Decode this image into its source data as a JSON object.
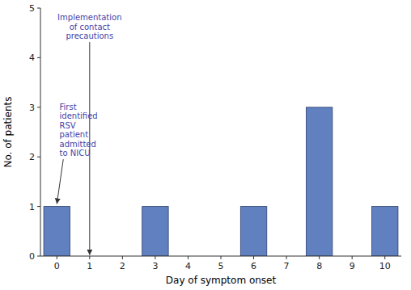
{
  "chart_data": {
    "type": "bar",
    "x": [
      0,
      1,
      2,
      3,
      4,
      5,
      6,
      7,
      8,
      9,
      10
    ],
    "values": [
      1,
      0,
      0,
      1,
      0,
      0,
      1,
      0,
      3,
      0,
      1
    ],
    "color": "#6080c0",
    "xlabel": "Day of symptom onset",
    "ylabel": "No. of patients",
    "xlim": [
      -0.5,
      10.5
    ],
    "xticks": [
      0,
      1,
      2,
      3,
      4,
      5,
      6,
      7,
      8,
      9,
      10
    ],
    "ylim": [
      0,
      5
    ],
    "yticks": [
      0,
      1,
      2,
      3,
      4,
      5
    ],
    "grid": false,
    "annotations": [
      {
        "text": "Implementation\nof contact\nprecautions",
        "x": 1.0,
        "y": 0.02
      },
      {
        "text": "First\nidentified\nRSV\npatient\nadmitted\nto NICU",
        "x": 0.0,
        "y": 1.05
      }
    ]
  }
}
